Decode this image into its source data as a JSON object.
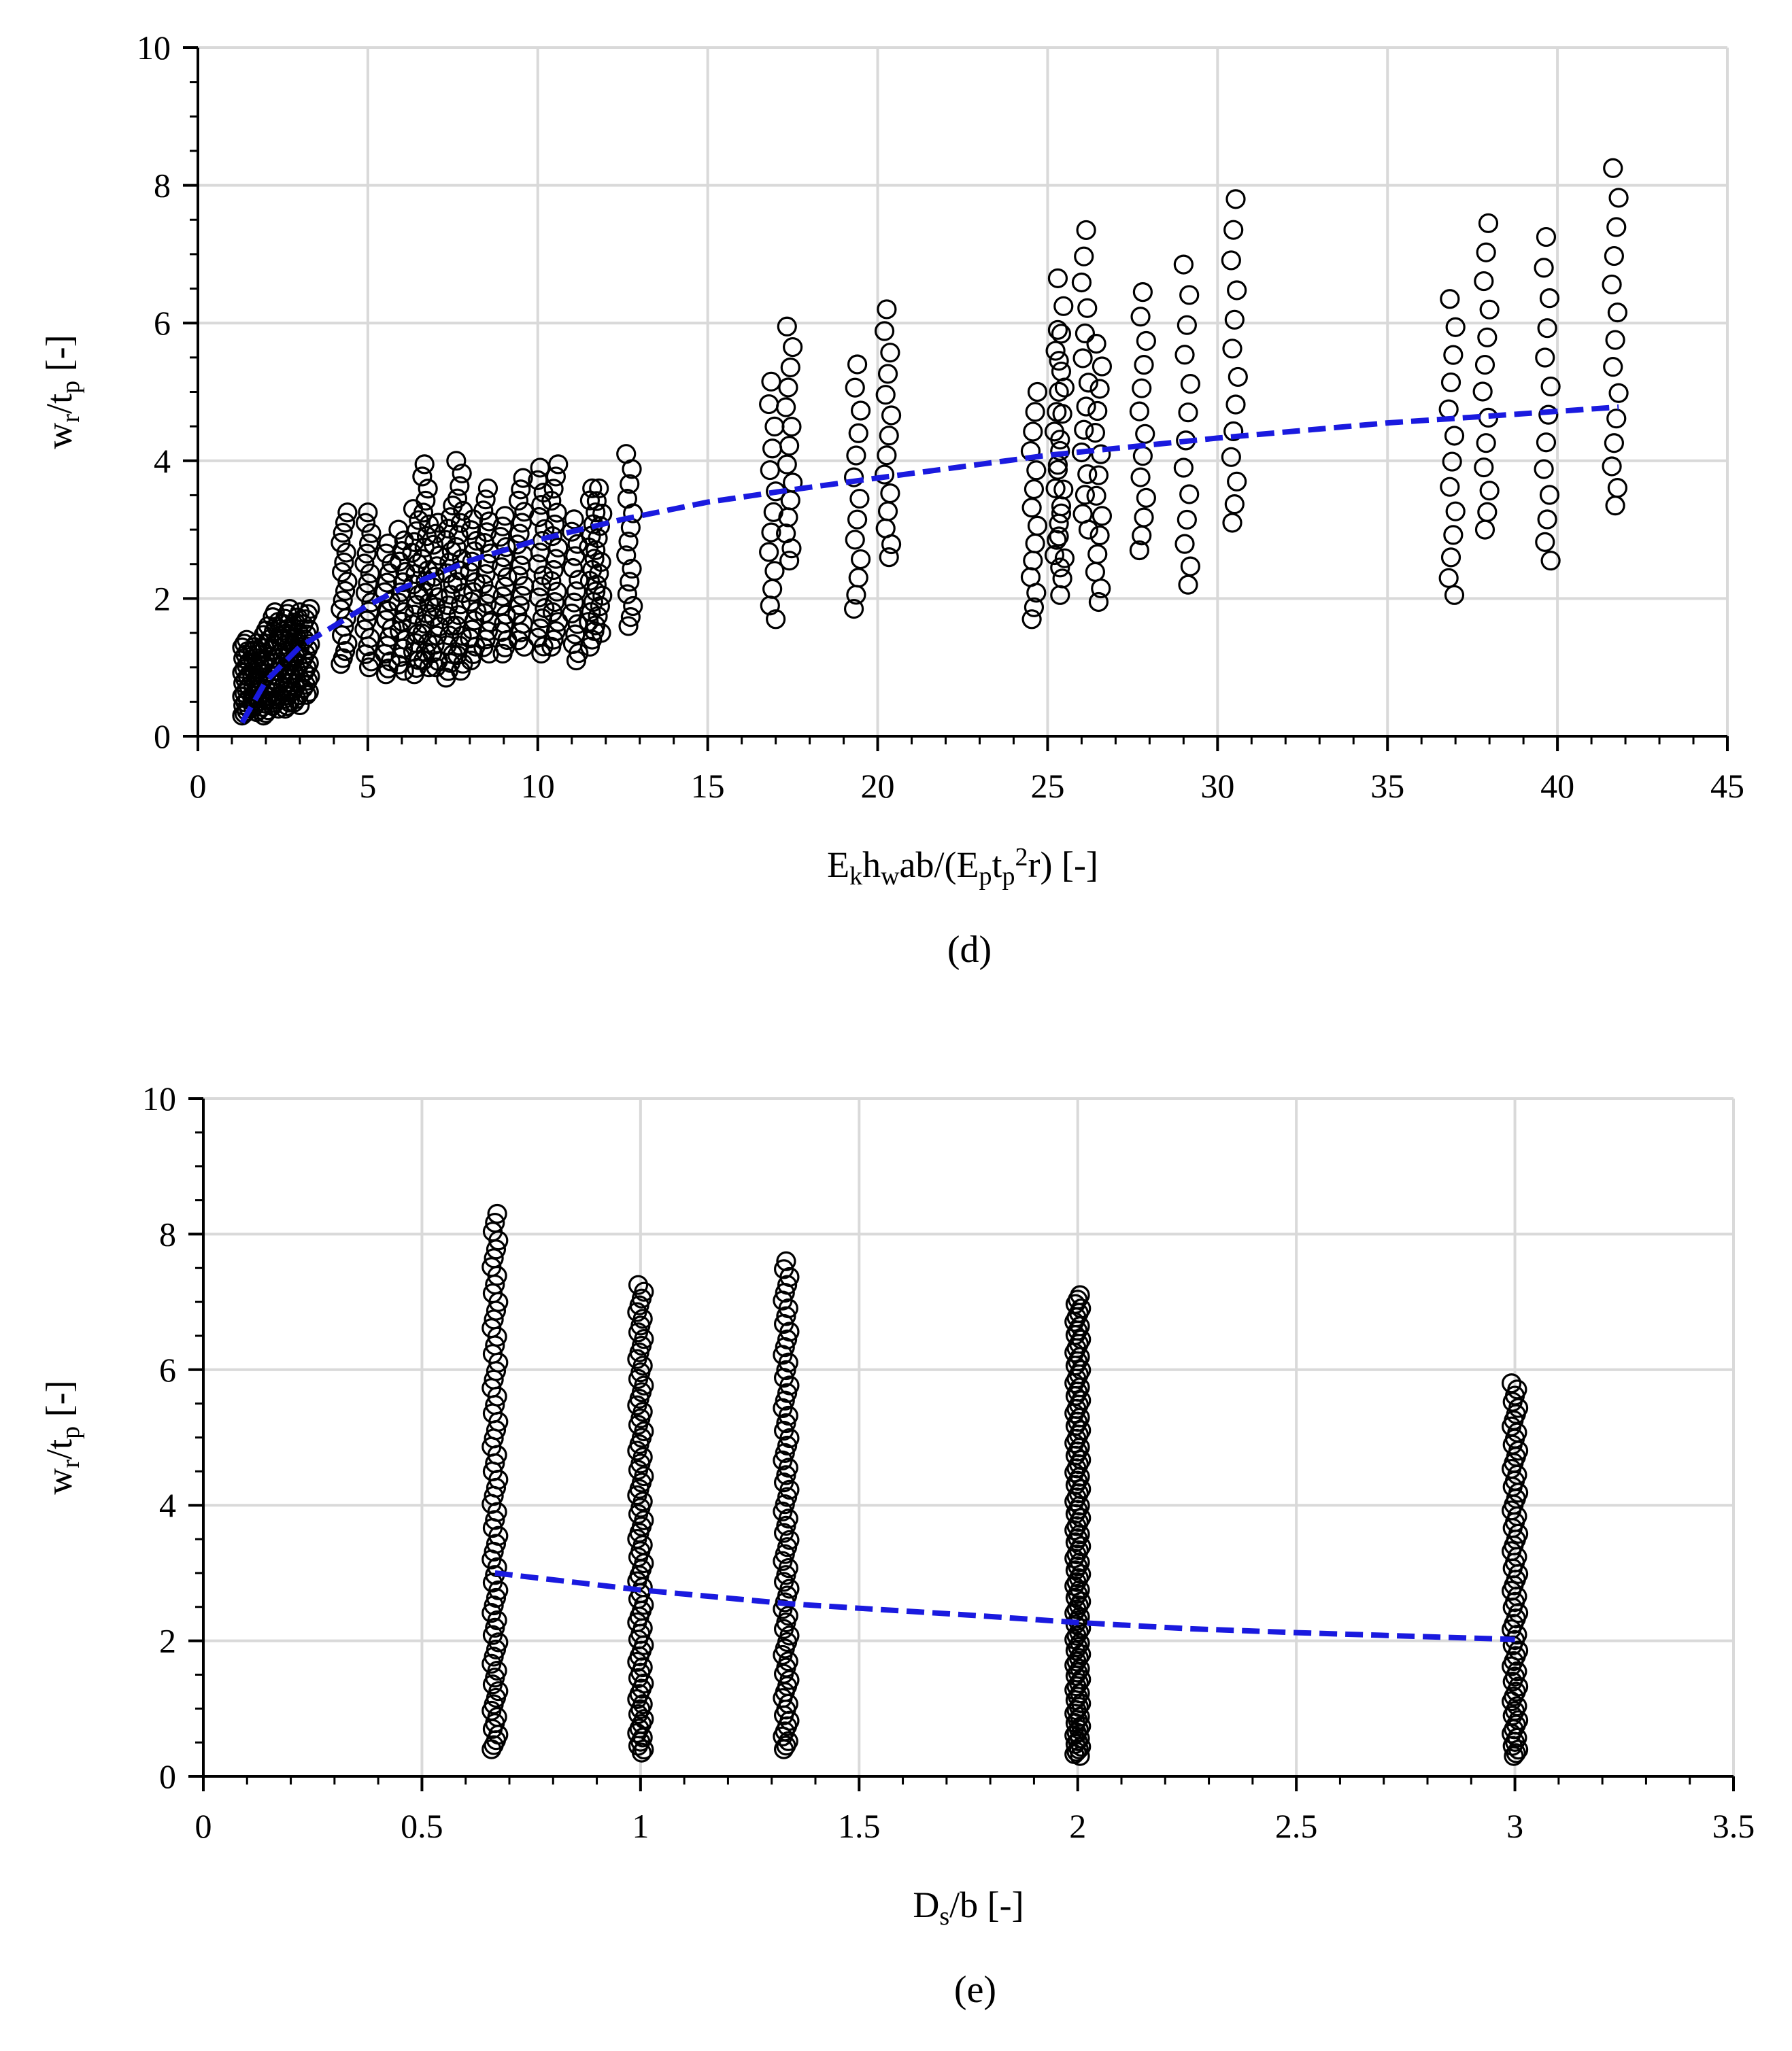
{
  "chart_data": [
    {
      "type": "scatter",
      "panel_label": "(d)",
      "xlabel": {
        "base": "E",
        "sub1": "k",
        "base2": "h",
        "sub2": "w",
        "mid": "ab/(E",
        "sub3": "p",
        "base3": "t",
        "sub4": "p",
        "sup": "2",
        "tail": "r) [-]"
      },
      "ylabel": {
        "base": "w",
        "sub1": "r",
        "mid": "/t",
        "sub2": "p",
        "tail": " [-]"
      },
      "xlim": [
        0,
        45
      ],
      "ylim": [
        0,
        10
      ],
      "xticks": [
        0,
        5,
        10,
        15,
        20,
        25,
        30,
        35,
        40,
        45
      ],
      "yticks": [
        0,
        2,
        4,
        6,
        8,
        10
      ],
      "grid": true,
      "trend": {
        "x": [
          1.3,
          2,
          3,
          4,
          5,
          6,
          8,
          10,
          12.5,
          15,
          17.5,
          20,
          25,
          30,
          35,
          38,
          41.8
        ],
        "y": [
          0.2,
          0.8,
          1.3,
          1.6,
          1.9,
          2.15,
          2.55,
          2.85,
          3.15,
          3.4,
          3.58,
          3.75,
          4.08,
          4.33,
          4.55,
          4.65,
          4.78
        ],
        "color": "#1a1adf"
      },
      "columns": [
        {
          "x": 1.4,
          "ymin": 0.3,
          "ymax": 1.4,
          "n": 24,
          "extra": []
        },
        {
          "x": 1.7,
          "ymin": 0.35,
          "ymax": 1.35,
          "n": 22,
          "extra": []
        },
        {
          "x": 2.0,
          "ymin": 0.3,
          "ymax": 1.6,
          "n": 24,
          "extra": []
        },
        {
          "x": 2.3,
          "ymin": 0.4,
          "ymax": 1.8,
          "n": 24,
          "extra": []
        },
        {
          "x": 2.6,
          "ymin": 0.4,
          "ymax": 1.85,
          "n": 24,
          "extra": []
        },
        {
          "x": 2.9,
          "ymin": 0.45,
          "ymax": 1.8,
          "n": 22,
          "extra": []
        },
        {
          "x": 3.2,
          "ymin": 0.6,
          "ymax": 1.85,
          "n": 20,
          "extra": []
        },
        {
          "x": 4.3,
          "ymin": 1.05,
          "ymax": 3.25,
          "n": 18,
          "extra": []
        },
        {
          "x": 5.0,
          "ymin": 1.0,
          "ymax": 3.25,
          "n": 18,
          "extra": []
        },
        {
          "x": 5.6,
          "ymin": 0.9,
          "ymax": 2.8,
          "n": 16,
          "extra": []
        },
        {
          "x": 6.0,
          "ymin": 0.95,
          "ymax": 3.0,
          "n": 16,
          "extra": []
        },
        {
          "x": 6.4,
          "ymin": 0.9,
          "ymax": 3.3,
          "n": 18,
          "extra": []
        },
        {
          "x": 6.7,
          "ymin": 1.0,
          "ymax": 3.95,
          "n": 20,
          "extra": []
        },
        {
          "x": 7.0,
          "ymin": 1.0,
          "ymax": 3.1,
          "n": 16,
          "extra": []
        },
        {
          "x": 7.4,
          "ymin": 0.85,
          "ymax": 3.35,
          "n": 18,
          "extra": []
        },
        {
          "x": 7.7,
          "ymin": 0.95,
          "ymax": 4.0,
          "n": 20,
          "extra": []
        },
        {
          "x": 8.1,
          "ymin": 1.1,
          "ymax": 3.15,
          "n": 16,
          "extra": []
        },
        {
          "x": 8.5,
          "ymin": 1.2,
          "ymax": 3.6,
          "n": 18,
          "extra": []
        },
        {
          "x": 9.0,
          "ymin": 1.2,
          "ymax": 3.2,
          "n": 16,
          "extra": []
        },
        {
          "x": 9.5,
          "ymin": 1.3,
          "ymax": 3.75,
          "n": 18,
          "extra": []
        },
        {
          "x": 10.1,
          "ymin": 1.2,
          "ymax": 3.9,
          "n": 18,
          "extra": []
        },
        {
          "x": 10.5,
          "ymin": 1.3,
          "ymax": 3.95,
          "n": 18,
          "extra": []
        },
        {
          "x": 11.1,
          "ymin": 1.1,
          "ymax": 3.15,
          "n": 14,
          "extra": []
        },
        {
          "x": 11.6,
          "ymin": 1.3,
          "ymax": 3.6,
          "n": 16,
          "extra": []
        },
        {
          "x": 11.8,
          "ymin": 1.5,
          "ymax": 3.6,
          "n": 14,
          "extra": []
        },
        {
          "x": 12.7,
          "ymin": 1.6,
          "ymax": 4.1,
          "n": 14,
          "extra": []
        },
        {
          "x": 16.9,
          "ymin": 1.7,
          "ymax": 5.15,
          "n": 13,
          "extra": []
        },
        {
          "x": 17.4,
          "ymin": 2.55,
          "ymax": 5.95,
          "n": 14,
          "extra": []
        },
        {
          "x": 19.4,
          "ymin": 1.85,
          "ymax": 5.4,
          "n": 13,
          "extra": []
        },
        {
          "x": 20.3,
          "ymin": 2.6,
          "ymax": 6.2,
          "n": 14,
          "extra": []
        },
        {
          "x": 24.6,
          "ymin": 1.7,
          "ymax": 5.0,
          "n": 14,
          "extra": []
        },
        {
          "x": 25.3,
          "ymin": 2.45,
          "ymax": 5.9,
          "n": 14,
          "extra": []
        },
        {
          "x": 25.4,
          "ymin": 2.05,
          "ymax": 6.65,
          "n": 14,
          "extra": []
        },
        {
          "x": 26.1,
          "ymin": 3.0,
          "ymax": 7.35,
          "n": 14,
          "extra": []
        },
        {
          "x": 26.5,
          "ymin": 1.95,
          "ymax": 5.7,
          "n": 14,
          "extra": []
        },
        {
          "x": 27.8,
          "ymin": 2.7,
          "ymax": 6.45,
          "n": 13,
          "extra": []
        },
        {
          "x": 29.1,
          "ymin": 2.2,
          "ymax": 6.85,
          "n": 13,
          "extra": []
        },
        {
          "x": 30.5,
          "ymin": 3.1,
          "ymax": 7.8,
          "n": 13,
          "extra": []
        },
        {
          "x": 36.9,
          "ymin": 2.05,
          "ymax": 6.35,
          "n": 13,
          "extra": []
        },
        {
          "x": 37.9,
          "ymin": 3.0,
          "ymax": 7.45,
          "n": 13,
          "extra": []
        },
        {
          "x": 39.7,
          "ymin": 2.55,
          "ymax": 7.25,
          "n": 13,
          "extra": []
        },
        {
          "x": 41.7,
          "ymin": 3.35,
          "ymax": 8.25,
          "n": 14,
          "extra": []
        }
      ]
    },
    {
      "type": "scatter",
      "panel_label": "(e)",
      "xlabel": {
        "base": "D",
        "sub1": "s",
        "tail": "/b [-]"
      },
      "ylabel": {
        "base": "w",
        "sub1": "r",
        "mid": "/t",
        "sub2": "p",
        "tail": " [-]"
      },
      "xlim": [
        0,
        3.5
      ],
      "ylim": [
        0,
        10
      ],
      "xticks": [
        0,
        0.5,
        1,
        1.5,
        2,
        2.5,
        3,
        3.5
      ],
      "yticks": [
        0,
        2,
        4,
        6,
        8,
        10
      ],
      "grid": true,
      "trend": {
        "x": [
          0.667,
          1,
          1.333,
          1.5,
          1.75,
          2,
          2.25,
          2.5,
          2.75,
          3
        ],
        "y": [
          3.0,
          2.75,
          2.55,
          2.48,
          2.38,
          2.27,
          2.18,
          2.12,
          2.07,
          2.02
        ],
        "color": "#1a1adf"
      },
      "columns": [
        {
          "x": 0.667,
          "ymin": 0.4,
          "ymax": 8.3,
          "n": 70,
          "extra": []
        },
        {
          "x": 1.0,
          "ymin": 0.35,
          "ymax": 7.25,
          "n": 80,
          "extra": []
        },
        {
          "x": 1.333,
          "ymin": 0.4,
          "ymax": 7.6,
          "n": 72,
          "extra": []
        },
        {
          "x": 2.0,
          "ymin": 0.3,
          "ymax": 7.1,
          "n": 120,
          "extra": []
        },
        {
          "x": 3.0,
          "ymin": 0.3,
          "ymax": 5.8,
          "n": 70,
          "extra": []
        }
      ]
    }
  ]
}
